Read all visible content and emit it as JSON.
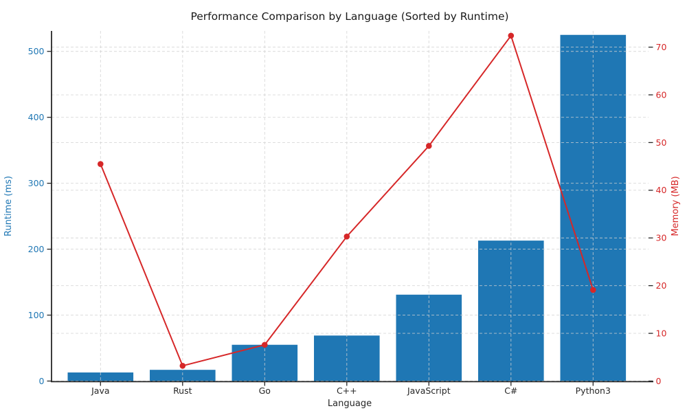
{
  "chart_data": {
    "type": "bar",
    "subtype": "combo-bar-line-dual-axis",
    "title": "Performance Comparison by Language (Sorted by Runtime)",
    "xlabel": "Language",
    "ylabel_left": "Runtime (ms)",
    "ylabel_right": "Memory (MB)",
    "categories": [
      "Java",
      "Rust",
      "Go",
      "C++",
      "JavaScript",
      "C#",
      "Python3"
    ],
    "series": [
      {
        "name": "Runtime (ms)",
        "type": "bar",
        "axis": "left",
        "color": "#1f77b4",
        "values": [
          13,
          17,
          55,
          69,
          131,
          213,
          525
        ]
      },
      {
        "name": "Memory (MB)",
        "type": "line",
        "axis": "right",
        "color": "#d62728",
        "marker": "circle",
        "values": [
          45.5,
          3.2,
          7.6,
          30.3,
          49.3,
          72.4,
          19.1
        ]
      }
    ],
    "ylim_left": [
      0,
      531
    ],
    "ylim_right": [
      0,
      73.4
    ],
    "left_ticks": [
      0,
      100,
      200,
      300,
      400,
      500
    ],
    "right_ticks": [
      0,
      10,
      20,
      30,
      40,
      50,
      60,
      70
    ],
    "grid": true,
    "grid_style": "dashed",
    "legend": "none",
    "colors": {
      "bar": "#1f77b4",
      "line": "#d62728",
      "grid": "#d2d2d2",
      "axis": "#262626",
      "left_tick_text": "#1f77b4",
      "right_tick_text": "#d62728",
      "background": "#ffffff"
    }
  }
}
